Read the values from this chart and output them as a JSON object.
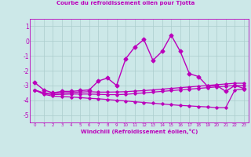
{
  "title": "Courbe du refroidissement olien pour Tjotta",
  "xlabel": "Windchill (Refroidissement éolien,°C)",
  "background_color": "#cce8e8",
  "grid_color": "#aacccc",
  "line_color": "#bb00bb",
  "x_ticks": [
    0,
    1,
    2,
    3,
    4,
    5,
    6,
    7,
    8,
    9,
    10,
    11,
    12,
    13,
    14,
    15,
    16,
    17,
    18,
    19,
    20,
    21,
    22,
    23
  ],
  "ylim": [
    -5.5,
    1.5
  ],
  "yticks": [
    1,
    0,
    -1,
    -2,
    -3,
    -4,
    -5
  ],
  "series": [
    {
      "x": [
        0,
        1,
        2,
        3,
        4,
        5,
        6,
        7,
        8,
        9,
        10,
        11,
        12,
        13,
        14,
        15,
        16,
        17,
        18,
        19,
        20,
        21,
        22,
        23
      ],
      "y": [
        -2.8,
        -3.3,
        -3.5,
        -3.4,
        -3.4,
        -3.35,
        -3.3,
        -2.7,
        -2.5,
        -3.0,
        -1.2,
        -0.4,
        0.1,
        -1.3,
        -0.7,
        0.4,
        -0.7,
        -2.2,
        -2.4,
        -3.05,
        -3.0,
        -3.4,
        -3.0,
        -3.2
      ],
      "marker": "D",
      "markersize": 2.5,
      "linewidth": 1.0
    },
    {
      "x": [
        0,
        1,
        2,
        3,
        4,
        5,
        6,
        7,
        8,
        9,
        10,
        11,
        12,
        13,
        14,
        15,
        16,
        17,
        18,
        19,
        20,
        21,
        22,
        23
      ],
      "y": [
        -3.3,
        -3.5,
        -3.55,
        -3.5,
        -3.48,
        -3.45,
        -3.42,
        -3.45,
        -3.45,
        -3.44,
        -3.42,
        -3.38,
        -3.35,
        -3.3,
        -3.25,
        -3.2,
        -3.15,
        -3.1,
        -3.05,
        -3.0,
        -2.95,
        -2.9,
        -2.85,
        -2.85
      ],
      "marker": "D",
      "markersize": 1.8,
      "linewidth": 0.9
    },
    {
      "x": [
        0,
        1,
        2,
        3,
        4,
        5,
        6,
        7,
        8,
        9,
        10,
        11,
        12,
        13,
        14,
        15,
        16,
        17,
        18,
        19,
        20,
        21,
        22,
        23
      ],
      "y": [
        -3.3,
        -3.55,
        -3.62,
        -3.6,
        -3.58,
        -3.58,
        -3.58,
        -3.6,
        -3.62,
        -3.62,
        -3.6,
        -3.55,
        -3.5,
        -3.45,
        -3.4,
        -3.35,
        -3.3,
        -3.25,
        -3.2,
        -3.15,
        -3.1,
        -3.05,
        -3.0,
        -3.0
      ],
      "marker": "D",
      "markersize": 1.8,
      "linewidth": 0.9
    },
    {
      "x": [
        0,
        1,
        2,
        3,
        4,
        5,
        6,
        7,
        8,
        9,
        10,
        11,
        12,
        13,
        14,
        15,
        16,
        17,
        18,
        19,
        20,
        21,
        22,
        23
      ],
      "y": [
        -3.3,
        -3.6,
        -3.72,
        -3.75,
        -3.78,
        -3.82,
        -3.87,
        -3.9,
        -3.95,
        -4.0,
        -4.05,
        -4.1,
        -4.15,
        -4.2,
        -4.25,
        -4.3,
        -4.35,
        -4.38,
        -4.42,
        -4.45,
        -4.5,
        -4.5,
        -3.3,
        -3.25
      ],
      "marker": "D",
      "markersize": 1.8,
      "linewidth": 0.9
    }
  ]
}
